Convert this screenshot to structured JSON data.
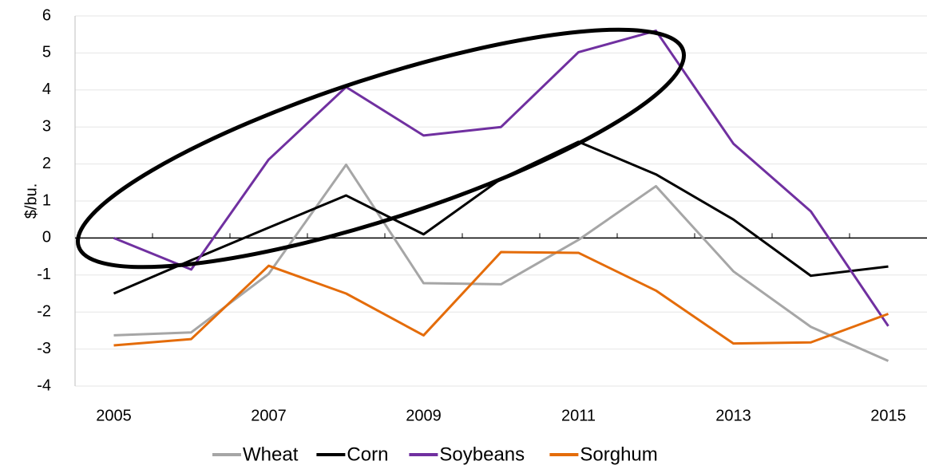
{
  "chart_data": {
    "type": "line",
    "y_label": "$/bu.",
    "x": [
      2005,
      2006,
      2007,
      2008,
      2009,
      2010,
      2011,
      2012,
      2013,
      2014,
      2015
    ],
    "xlim": [
      2004.5,
      2015.5
    ],
    "xticks": [
      2005,
      2007,
      2009,
      2011,
      2013,
      2015
    ],
    "ylim": [
      -4,
      6
    ],
    "yticks": [
      -4,
      -3,
      -2,
      -1,
      0,
      1,
      2,
      3,
      4,
      5,
      6
    ],
    "grid": true,
    "series": [
      {
        "name": "Wheat",
        "color": "#a6a6a6",
        "values": [
          -2.63,
          -2.55,
          -0.97,
          1.98,
          -1.22,
          -1.25,
          -0.05,
          1.4,
          -0.9,
          -2.4,
          -3.32
        ]
      },
      {
        "name": "Corn",
        "color": "#000000",
        "values": [
          -1.5,
          -0.6,
          0.28,
          1.15,
          0.1,
          1.6,
          2.6,
          1.72,
          0.5,
          -1.02,
          -0.77
        ]
      },
      {
        "name": "Soybeans",
        "color": "#7030a0",
        "values": [
          0,
          -0.85,
          2.12,
          4.08,
          2.77,
          3.0,
          5.02,
          5.6,
          2.55,
          0.72,
          -2.38
        ]
      },
      {
        "name": "Sorghum",
        "color": "#e46c0a",
        "values": [
          -2.9,
          -2.73,
          -0.75,
          -1.5,
          -2.63,
          -0.38,
          -0.4,
          -1.42,
          -2.85,
          -2.82,
          -2.05
        ]
      }
    ]
  }
}
